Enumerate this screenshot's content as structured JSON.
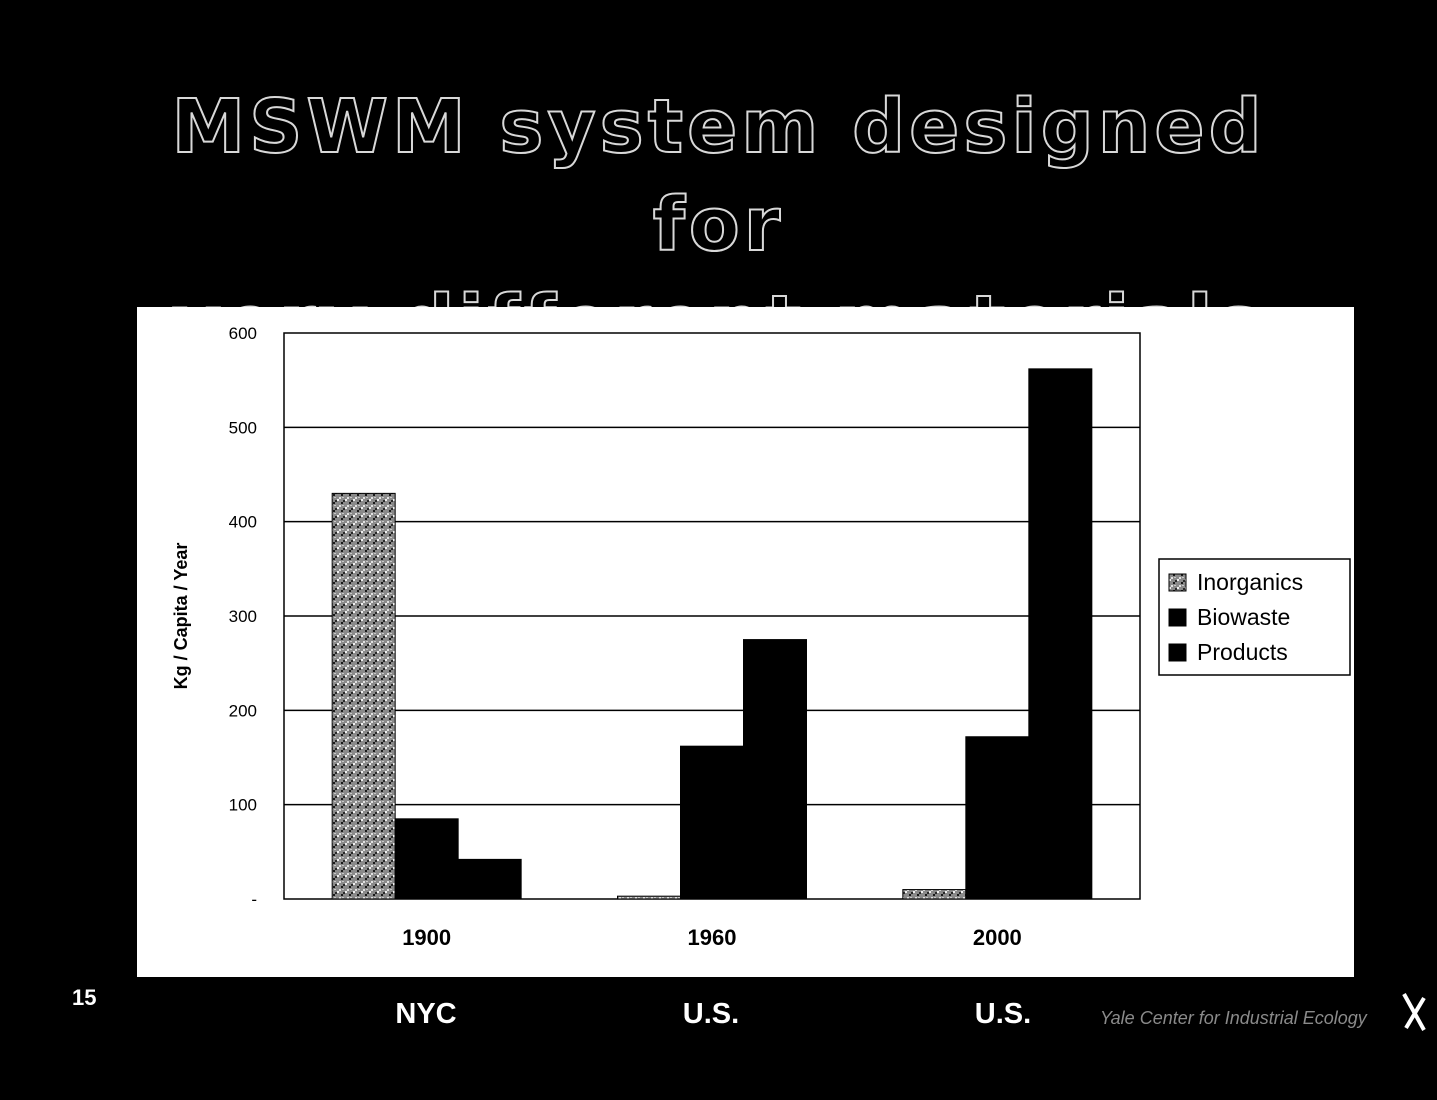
{
  "slide": {
    "title_lines": [
      "MSWM system designed for",
      "very different materials"
    ],
    "number": "15",
    "region_labels": [
      "NYC",
      "U.S.",
      "U.S."
    ],
    "footer_text": "Yale Center for Industrial Ecology"
  },
  "chart_data": {
    "type": "bar",
    "title": "",
    "xlabel": "",
    "ylabel": "Kg / Capita / Year",
    "ylim": [
      0,
      600
    ],
    "yticks": [
      "-",
      "100",
      "200",
      "300",
      "400",
      "500",
      "600"
    ],
    "categories": [
      "1900",
      "1960",
      "2000"
    ],
    "series": [
      {
        "name": "Inorganics",
        "values": [
          430,
          3,
          10
        ]
      },
      {
        "name": "Biowaste",
        "values": [
          85,
          162,
          172
        ]
      },
      {
        "name": "Products",
        "values": [
          42,
          275,
          562
        ]
      }
    ],
    "grid": true,
    "legend_position": "right"
  }
}
